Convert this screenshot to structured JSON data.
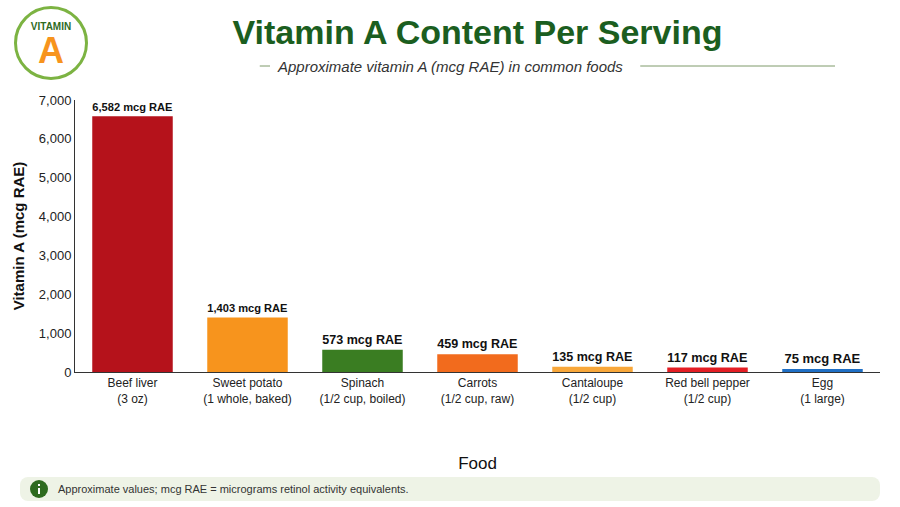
{
  "chart_data": {
    "type": "bar",
    "title": "Vitamin A Content Per Serving",
    "subtitle": "Approximate vitamin A (mcg RAE) in common foods",
    "badge": [
      "VITAMIN",
      "A"
    ],
    "x_label": "Food",
    "y_label": "Vitamin A (mcg RAE)",
    "categories": [
      "Beef liver (3 oz)",
      "Sweet potato (1 whole, baked)",
      "Spinach (1/2 cup, boiled)",
      "Carrots (1/2 cup, raw)",
      "Cantaloupe (1/2 cup)",
      "Red bell pepper (1/2 cup)",
      "Egg (1 large)"
    ],
    "values": [
      6582,
      1403,
      573,
      459,
      135,
      117,
      75
    ],
    "value_labels": [
      "6,582 mcg RAE",
      "1,403 mcg RAE",
      "573 mcg RAE",
      "459 mcg RAE",
      "135 mcg RAE",
      "117 mcg RAE",
      "75 mcg RAE"
    ],
    "colors": [
      "#b5121b",
      "#f7941d",
      "#3a7d22",
      "#f26b1d",
      "#f8a73a",
      "#e31e24",
      "#1f6fc5"
    ],
    "ylim": [
      0,
      7000
    ],
    "yticks": [
      0,
      {
        "value": 1000,
        "label": "1,000"
      },
      {
        "value": 2000,
        "label": "2,000"
      },
      {
        "value": 3000,
        "label": "3,000"
      },
      {
        "value": 4000,
        "label": "4,000"
      },
      {
        "value": 5000,
        "label": "5,000"
      },
      {
        "value": 6000,
        "label": "6,000"
      },
      {
        "value": 7000,
        "label": "7,000"
      }
    ],
    "grid": false,
    "data_labels": true,
    "footnote": "Approximate values; mcg RAE = micrograms retinol activity equivalents."
  }
}
